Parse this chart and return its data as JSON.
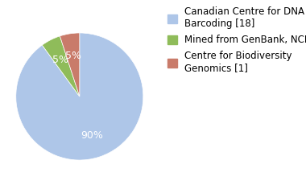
{
  "slices": [
    90,
    5,
    5
  ],
  "colors": [
    "#aec6e8",
    "#8fbc5a",
    "#c97b6a"
  ],
  "labels": [
    "Canadian Centre for DNA\nBarcoding [18]",
    "Mined from GenBank, NCBI [1]",
    "Centre for Biodiversity\nGenomics [1]"
  ],
  "startangle": 90,
  "background_color": "#ffffff",
  "text_color": "#ffffff",
  "font_size": 9,
  "legend_font_size": 8.5
}
